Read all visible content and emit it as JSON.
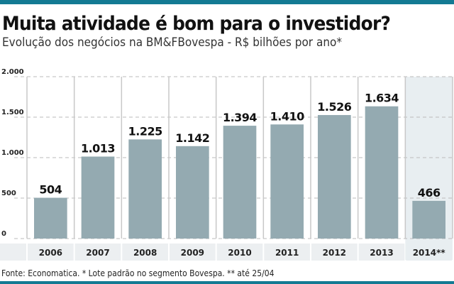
{
  "header": {
    "title": "Muita atividade é bom para o investidor?",
    "subtitle": "Evolução dos negócios na BM&FBovespa - R$ bilhões por ano*"
  },
  "footer": {
    "source": "Fonte: Economatica. * Lote padrão no segmento Bovespa. ** até 25/04"
  },
  "colors": {
    "accent": "#137a93",
    "bar": "#94aab1",
    "highlight_column": "#e8eef1",
    "axis_band": "#eceff1"
  },
  "chart_data": {
    "type": "bar",
    "title": "Muita atividade é bom para o investidor?",
    "subtitle": "Evolução dos negócios na BM&FBovespa - R$ bilhões por ano*",
    "categories": [
      "2006",
      "2007",
      "2008",
      "2009",
      "2010",
      "2011",
      "2012",
      "2013",
      "2014**"
    ],
    "values": [
      504,
      1013,
      1225,
      1142,
      1394,
      1410,
      1526,
      1634,
      466
    ],
    "data_labels": [
      "504",
      "1.013",
      "1.225",
      "1.142",
      "1.394",
      "1.410",
      "1.526",
      "1.634",
      "466"
    ],
    "ylim": [
      0,
      2000
    ],
    "yticks": [
      0,
      500,
      1000,
      1500,
      2000
    ],
    "ytick_labels": [
      "0",
      "500",
      "1.000",
      "1.500",
      "2.000"
    ],
    "grid": true,
    "highlighted_category": "2014**"
  }
}
